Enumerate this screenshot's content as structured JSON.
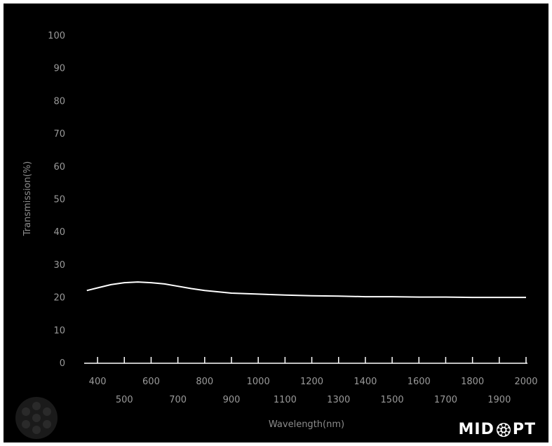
{
  "chart_data": {
    "type": "line",
    "title": "",
    "xlabel": "Wavelength(nm)",
    "ylabel": "Transmission(%)",
    "xlim": [
      350,
      2000
    ],
    "ylim": [
      0,
      100
    ],
    "yticks": [
      0,
      10,
      20,
      30,
      40,
      50,
      60,
      70,
      80,
      90,
      100
    ],
    "xticks_upper": [
      400,
      600,
      800,
      1000,
      1200,
      1400,
      1600,
      1800,
      2000
    ],
    "xticks_lower": [
      500,
      700,
      900,
      1100,
      1300,
      1500,
      1700,
      1900
    ],
    "grid": false,
    "line_color": "#ffffff",
    "series": [
      {
        "x": [
          360,
          400,
          450,
          500,
          550,
          600,
          650,
          700,
          750,
          800,
          850,
          900,
          1000,
          1100,
          1200,
          1300,
          1400,
          1500,
          1600,
          1700,
          1800,
          1900,
          2000
        ],
        "y": [
          22.0,
          22.8,
          23.8,
          24.4,
          24.6,
          24.4,
          24.0,
          23.3,
          22.6,
          22.0,
          21.6,
          21.2,
          20.9,
          20.6,
          20.4,
          20.3,
          20.1,
          20.1,
          20.0,
          20.0,
          19.9,
          19.9,
          19.9
        ]
      }
    ]
  },
  "logo": {
    "text_left": "MID",
    "text_right": "PT",
    "icon": "flower-gear-icon"
  },
  "watermark": {
    "icon": "watermark-lens-icon"
  }
}
